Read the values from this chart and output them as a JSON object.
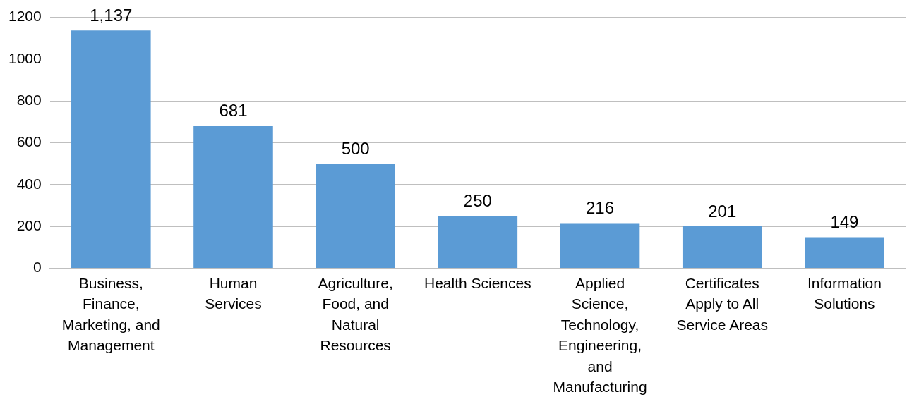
{
  "chart_data": {
    "type": "bar",
    "categories": [
      "Business, Finance, Marketing, and Management",
      "Human Services",
      "Agriculture, Food, and Natural Resources",
      "Health Sciences",
      "Applied Science, Technology, Engineering, and Manufacturing",
      "Certificates Apply to All Service Areas",
      "Information Solutions"
    ],
    "values": [
      1137,
      681,
      500,
      250,
      216,
      201,
      149
    ],
    "value_labels": [
      "1,137",
      "681",
      "500",
      "250",
      "216",
      "201",
      "149"
    ],
    "color": "#5b9bd5",
    "ylim": [
      0,
      1200
    ],
    "yticks": [
      0,
      200,
      400,
      600,
      800,
      1000,
      1200
    ],
    "grid": "y",
    "legend": false
  }
}
